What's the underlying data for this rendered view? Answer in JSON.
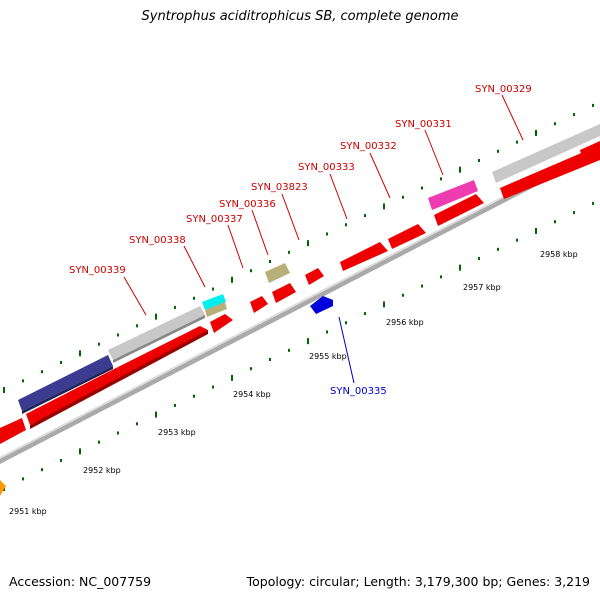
{
  "title": "Syntrophus aciditrophicus SB, complete genome",
  "footer": {
    "accession": "Accession: NC_007759",
    "summary": "Topology: circular; Length: 3,179,300 bp; Genes: 3,219"
  },
  "colors": {
    "forward": "#ee0000",
    "reverse": "#0000dd",
    "label_forward": "#cc0000",
    "label_reverse": "#0000cc",
    "tick": "#006600"
  },
  "ruler_labels": [
    "2951 kbp",
    "2952 kbp",
    "2953 kbp",
    "2954 kbp",
    "2955 kbp",
    "2956 kbp",
    "2957 kbp",
    "2958 kbp"
  ],
  "gene_labels": [
    {
      "name": "SYN_00339",
      "strand": "forward"
    },
    {
      "name": "SYN_00338",
      "strand": "forward"
    },
    {
      "name": "SYN_00337",
      "strand": "forward"
    },
    {
      "name": "SYN_00336",
      "strand": "forward"
    },
    {
      "name": "SYN_03823",
      "strand": "forward"
    },
    {
      "name": "SYN_00333",
      "strand": "forward"
    },
    {
      "name": "SYN_00332",
      "strand": "forward"
    },
    {
      "name": "SYN_00331",
      "strand": "forward"
    },
    {
      "name": "SYN_00329",
      "strand": "forward"
    },
    {
      "name": "SYN_00335",
      "strand": "reverse"
    }
  ]
}
